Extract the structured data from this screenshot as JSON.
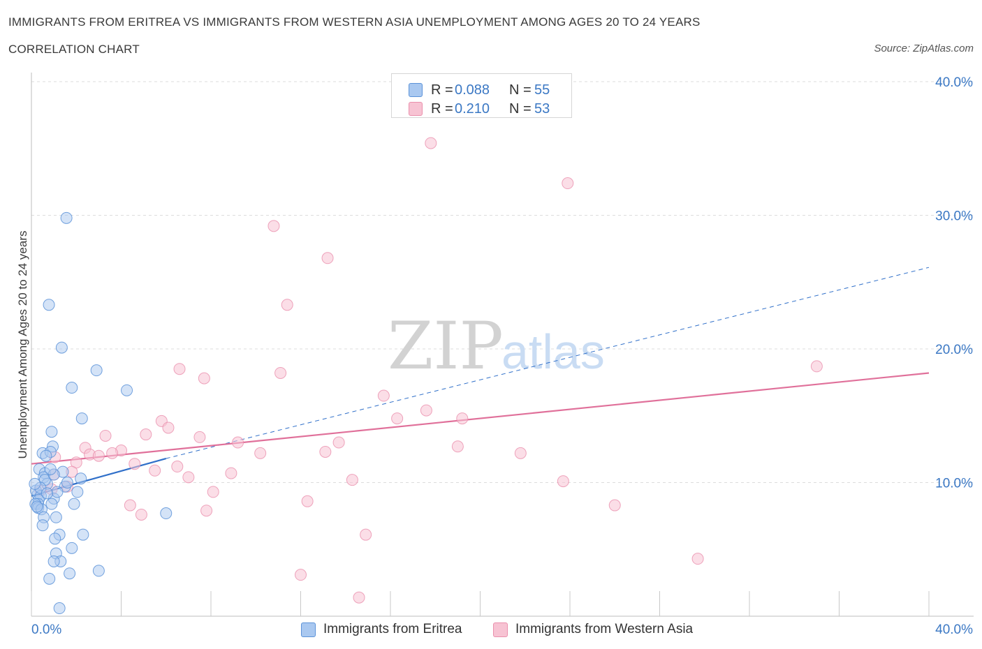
{
  "header": {
    "title": "IMMIGRANTS FROM ERITREA VS IMMIGRANTS FROM WESTERN ASIA UNEMPLOYMENT AMONG AGES 20 TO 24 YEARS",
    "subtitle": "CORRELATION CHART",
    "source": "Source: ZipAtlas.com"
  },
  "watermark": {
    "zip": "ZIP",
    "atlas": "atlas"
  },
  "legend": {
    "rows": [
      {
        "r_label": "R =",
        "r_value": "0.088",
        "n_label": "N =",
        "n_value": "55"
      },
      {
        "r_label": "R =",
        "r_value": "0.210",
        "n_label": "N =",
        "n_value": "53"
      }
    ]
  },
  "bottom_legend": {
    "eritrea": "Immigrants from Eritrea",
    "western_asia": "Immigrants from Western Asia"
  },
  "colors": {
    "eritrea_fill": "#a9c8f0",
    "eritrea_stroke": "#5b92d8",
    "eritrea_line": "#2f6fc9",
    "western_fill": "#f7c3d3",
    "western_stroke": "#ea8fac",
    "western_line": "#e0709a",
    "axis_text": "#3b78c4",
    "grid": "#dcdcdc"
  },
  "chart_data": {
    "type": "scatter",
    "title": "IMMIGRANTS FROM ERITREA VS IMMIGRANTS FROM WESTERN ASIA UNEMPLOYMENT AMONG AGES 20 TO 24 YEARS",
    "xlabel": "",
    "ylabel": "Unemployment Among Ages 20 to 24 years",
    "xlim": [
      0,
      40
    ],
    "ylim": [
      0,
      40
    ],
    "x_tick_labels": [
      "0.0%",
      "40.0%"
    ],
    "y_ticks": [
      10,
      20,
      30,
      40
    ],
    "y_tick_labels": [
      "10.0%",
      "20.0%",
      "30.0%",
      "40.0%"
    ],
    "series": [
      {
        "name": "Immigrants from Eritrea",
        "R": 0.088,
        "N": 55,
        "points": [
          [
            1.56,
            29.8
          ],
          [
            0.78,
            23.3
          ],
          [
            1.35,
            20.1
          ],
          [
            2.9,
            18.4
          ],
          [
            4.25,
            16.9
          ],
          [
            1.8,
            17.1
          ],
          [
            2.25,
            14.8
          ],
          [
            0.9,
            13.8
          ],
          [
            0.95,
            12.7
          ],
          [
            0.5,
            12.2
          ],
          [
            0.85,
            12.3
          ],
          [
            0.65,
            12.0
          ],
          [
            0.35,
            11.0
          ],
          [
            0.6,
            10.7
          ],
          [
            1.4,
            10.8
          ],
          [
            2.2,
            10.3
          ],
          [
            0.55,
            10.4
          ],
          [
            0.7,
            9.9
          ],
          [
            1.5,
            9.7
          ],
          [
            0.28,
            9.1
          ],
          [
            0.2,
            9.4
          ],
          [
            0.42,
            9.0
          ],
          [
            0.32,
            8.7
          ],
          [
            1.0,
            8.8
          ],
          [
            2.05,
            9.3
          ],
          [
            0.3,
            8.4
          ],
          [
            0.18,
            8.4
          ],
          [
            0.3,
            8.1
          ],
          [
            0.45,
            8.0
          ],
          [
            1.9,
            8.4
          ],
          [
            0.9,
            8.4
          ],
          [
            1.15,
            9.3
          ],
          [
            0.55,
            7.4
          ],
          [
            1.1,
            7.4
          ],
          [
            0.5,
            6.8
          ],
          [
            6.0,
            7.7
          ],
          [
            2.3,
            6.1
          ],
          [
            1.25,
            6.1
          ],
          [
            1.05,
            5.8
          ],
          [
            1.8,
            5.1
          ],
          [
            1.1,
            4.7
          ],
          [
            1.3,
            4.1
          ],
          [
            1.0,
            4.1
          ],
          [
            3.0,
            3.4
          ],
          [
            0.8,
            2.8
          ],
          [
            1.7,
            3.2
          ],
          [
            1.25,
            0.6
          ],
          [
            0.6,
            10.2
          ],
          [
            1.0,
            10.6
          ],
          [
            0.4,
            9.6
          ],
          [
            1.6,
            10.0
          ],
          [
            0.25,
            8.2
          ],
          [
            0.7,
            9.2
          ],
          [
            0.15,
            9.9
          ],
          [
            0.85,
            11.0
          ]
        ],
        "trend": {
          "x": [
            0,
            6.0
          ],
          "y": [
            9.0,
            11.8
          ],
          "extended_x": [
            6.0,
            40.0
          ],
          "extended_y": [
            11.8,
            26.1
          ]
        }
      },
      {
        "name": "Immigrants from Western Asia",
        "R": 0.21,
        "N": 53,
        "points": [
          [
            17.8,
            35.4
          ],
          [
            23.9,
            32.4
          ],
          [
            10.8,
            29.2
          ],
          [
            13.2,
            26.8
          ],
          [
            11.4,
            23.3
          ],
          [
            35.0,
            18.7
          ],
          [
            6.6,
            18.5
          ],
          [
            7.7,
            17.8
          ],
          [
            11.1,
            18.2
          ],
          [
            15.7,
            16.5
          ],
          [
            17.6,
            15.4
          ],
          [
            5.8,
            14.6
          ],
          [
            16.3,
            14.8
          ],
          [
            19.2,
            14.8
          ],
          [
            6.1,
            14.1
          ],
          [
            3.3,
            13.5
          ],
          [
            5.1,
            13.6
          ],
          [
            7.5,
            13.4
          ],
          [
            9.2,
            13.0
          ],
          [
            13.7,
            13.0
          ],
          [
            2.4,
            12.6
          ],
          [
            19.0,
            12.7
          ],
          [
            4.0,
            12.4
          ],
          [
            2.6,
            12.1
          ],
          [
            3.0,
            12.0
          ],
          [
            3.6,
            12.2
          ],
          [
            10.2,
            12.2
          ],
          [
            13.1,
            12.3
          ],
          [
            21.8,
            12.2
          ],
          [
            1.05,
            11.9
          ],
          [
            4.6,
            11.4
          ],
          [
            2.0,
            11.5
          ],
          [
            6.5,
            11.2
          ],
          [
            1.8,
            10.8
          ],
          [
            5.5,
            10.9
          ],
          [
            8.9,
            10.7
          ],
          [
            1.0,
            10.6
          ],
          [
            7.0,
            10.4
          ],
          [
            14.3,
            10.2
          ],
          [
            23.7,
            10.1
          ],
          [
            1.6,
            9.7
          ],
          [
            0.4,
            9.4
          ],
          [
            0.9,
            9.5
          ],
          [
            8.1,
            9.3
          ],
          [
            12.3,
            8.6
          ],
          [
            4.4,
            8.3
          ],
          [
            26.0,
            8.3
          ],
          [
            7.8,
            7.9
          ],
          [
            4.9,
            7.6
          ],
          [
            14.9,
            6.1
          ],
          [
            29.7,
            4.3
          ],
          [
            12.0,
            3.1
          ],
          [
            14.6,
            1.4
          ]
        ],
        "trend": {
          "x": [
            0,
            40.0
          ],
          "y": [
            11.4,
            18.2
          ]
        }
      }
    ]
  }
}
